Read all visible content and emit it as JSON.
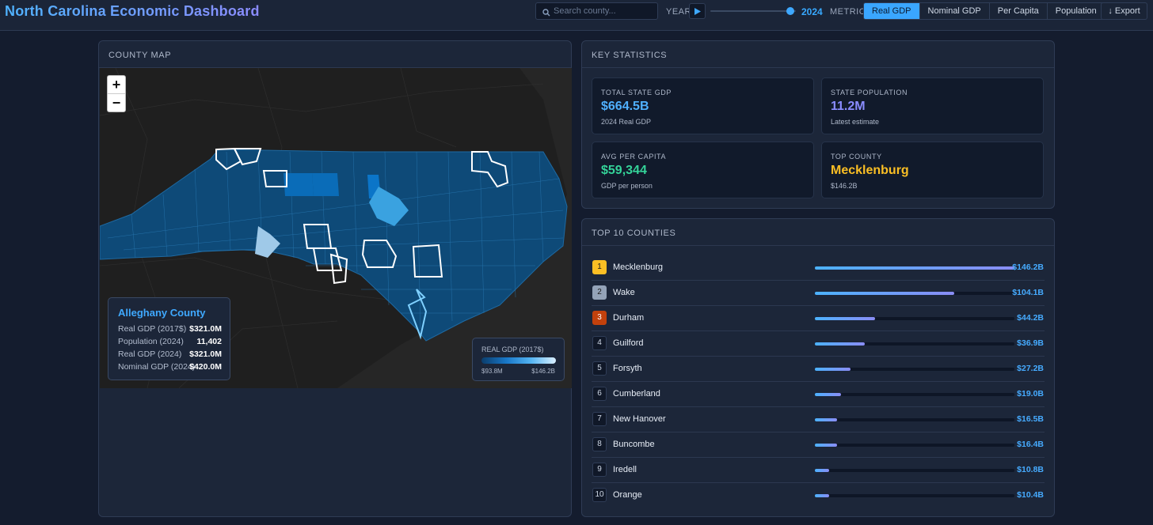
{
  "app": {
    "title": "North Carolina Economic Dashboard"
  },
  "header": {
    "search_placeholder": "Search county...",
    "year_label": "YEAR",
    "year_value": "2024",
    "year_slider_fraction": 0.98,
    "metric_label": "METRIC",
    "metric_tabs": [
      {
        "label": "Real GDP",
        "active": true
      },
      {
        "label": "Nominal GDP",
        "active": false
      },
      {
        "label": "Per Capita",
        "active": false
      },
      {
        "label": "Population",
        "active": false
      }
    ],
    "export_label": "↓ Export"
  },
  "map_panel": {
    "title": "COUNTY MAP",
    "zoom_in": "+",
    "zoom_out": "−",
    "tooltip": {
      "county": "Alleghany County",
      "rows": [
        {
          "label": "Real GDP (2017$)",
          "value": "$321.0M"
        },
        {
          "label": "Population (2024)",
          "value": "11,402"
        },
        {
          "label": "Real GDP (2024)",
          "value": "$321.0M"
        },
        {
          "label": "Nominal GDP (2024)",
          "value": "$420.0M"
        }
      ]
    },
    "legend": {
      "title": "REAL GDP (2017$)",
      "min": "$93.8M",
      "max": "$146.2B"
    }
  },
  "stats_panel": {
    "title": "KEY STATISTICS",
    "cards": [
      {
        "label": "TOTAL STATE GDP",
        "value": "$664.5B",
        "sub": "2024 Real GDP",
        "color": "#4fb0ff"
      },
      {
        "label": "STATE POPULATION",
        "value": "11.2M",
        "sub": "Latest estimate",
        "color": "#8a8cff"
      },
      {
        "label": "AVG PER CAPITA",
        "value": "$59,344",
        "sub": "GDP per person",
        "color": "#34d399"
      },
      {
        "label": "TOP COUNTY",
        "value": "Mecklenburg",
        "sub": "$146.2B",
        "color": "#fbbf24"
      }
    ]
  },
  "top_panel": {
    "title": "TOP 10 COUNTIES",
    "rows": [
      {
        "rank": "1",
        "name": "Mecklenburg",
        "value": "$146.2B",
        "fraction": 1.0,
        "badge": "#fbbf24",
        "badge_text": "#1a1a1a"
      },
      {
        "rank": "2",
        "name": "Wake",
        "value": "$104.1B",
        "fraction": 0.7,
        "badge": "#94a3b8",
        "badge_text": "#1a1a1a"
      },
      {
        "rank": "3",
        "name": "Durham",
        "value": "$44.2B",
        "fraction": 0.3,
        "badge": "#c2410c",
        "badge_text": "#ffffff"
      },
      {
        "rank": "4",
        "name": "Guilford",
        "value": "$36.9B",
        "fraction": 0.25,
        "badge": "",
        "badge_text": ""
      },
      {
        "rank": "5",
        "name": "Forsyth",
        "value": "$27.2B",
        "fraction": 0.18,
        "badge": "",
        "badge_text": ""
      },
      {
        "rank": "6",
        "name": "Cumberland",
        "value": "$19.0B",
        "fraction": 0.13,
        "badge": "",
        "badge_text": ""
      },
      {
        "rank": "7",
        "name": "New Hanover",
        "value": "$16.5B",
        "fraction": 0.11,
        "badge": "",
        "badge_text": ""
      },
      {
        "rank": "8",
        "name": "Buncombe",
        "value": "$16.4B",
        "fraction": 0.11,
        "badge": "",
        "badge_text": ""
      },
      {
        "rank": "9",
        "name": "Iredell",
        "value": "$10.8B",
        "fraction": 0.07,
        "badge": "",
        "badge_text": ""
      },
      {
        "rank": "10",
        "name": "Orange",
        "value": "$10.4B",
        "fraction": 0.07,
        "badge": "",
        "badge_text": ""
      }
    ]
  }
}
